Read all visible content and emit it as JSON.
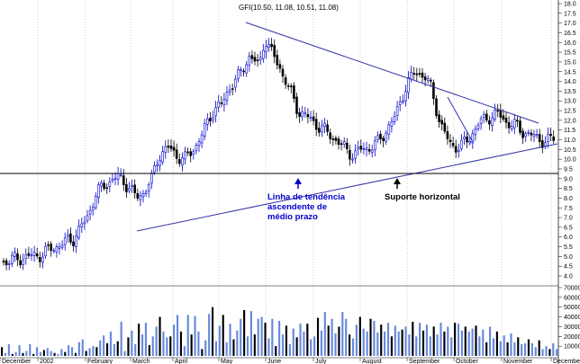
{
  "chart_data": {
    "type": "candlestick",
    "title": "GFI(10.50, 11.08, 10.51, 11.08)",
    "price_axis": {
      "ylim": [
        4.0,
        18.0
      ],
      "ticks": [
        "4.0",
        "4.5",
        "5.0",
        "5.5",
        "6.0",
        "6.5",
        "7.0",
        "7.5",
        "8.0",
        "8.5",
        "9.0",
        "9.5",
        "10.0",
        "10.5",
        "11.0",
        "11.5",
        "12.0",
        "12.5",
        "13.0",
        "13.5",
        "14.0",
        "14.5",
        "15.0",
        "15.5",
        "16.0",
        "16.5",
        "17.0",
        "17.5",
        "18.0"
      ]
    },
    "volume_axis": {
      "ylim": [
        0,
        70000
      ],
      "ticks": [
        "10000",
        "20000",
        "30000",
        "40000",
        "50000",
        "60000",
        "70000"
      ]
    },
    "x_months": [
      "December",
      "2002",
      "February",
      "March",
      "April",
      "May",
      "June",
      "July",
      "August",
      "September",
      "October",
      "November",
      "December"
    ],
    "price_path": [
      [
        0,
        4.7
      ],
      [
        20,
        4.9
      ],
      [
        45,
        5.1
      ],
      [
        60,
        5.5
      ],
      [
        80,
        5.9
      ],
      [
        95,
        6.9
      ],
      [
        105,
        8.2
      ],
      [
        118,
        8.8
      ],
      [
        130,
        9.1
      ],
      [
        142,
        8.6
      ],
      [
        150,
        8.0
      ],
      [
        158,
        8.3
      ],
      [
        168,
        9.0
      ],
      [
        175,
        10.2
      ],
      [
        185,
        10.6
      ],
      [
        195,
        10.2
      ],
      [
        205,
        10.0
      ],
      [
        215,
        10.6
      ],
      [
        225,
        11.4
      ],
      [
        235,
        12.5
      ],
      [
        245,
        12.8
      ],
      [
        255,
        13.8
      ],
      [
        265,
        14.3
      ],
      [
        275,
        15.3
      ],
      [
        287,
        14.8
      ],
      [
        293,
        16.3
      ],
      [
        300,
        15.5
      ],
      [
        310,
        14.7
      ],
      [
        320,
        13.6
      ],
      [
        330,
        12.5
      ],
      [
        345,
        12.0
      ],
      [
        355,
        11.6
      ],
      [
        365,
        11.3
      ],
      [
        378,
        10.7
      ],
      [
        392,
        10.2
      ],
      [
        400,
        10.5
      ],
      [
        408,
        10.6
      ],
      [
        418,
        10.8
      ],
      [
        428,
        11.5
      ],
      [
        438,
        12.2
      ],
      [
        448,
        13.6
      ],
      [
        460,
        14.5
      ],
      [
        470,
        14.3
      ],
      [
        478,
        13.6
      ],
      [
        488,
        11.8
      ],
      [
        498,
        10.8
      ],
      [
        510,
        10.6
      ],
      [
        520,
        11.1
      ],
      [
        530,
        11.8
      ],
      [
        542,
        12.2
      ],
      [
        552,
        12.3
      ],
      [
        562,
        11.9
      ],
      [
        572,
        11.7
      ],
      [
        580,
        11.4
      ],
      [
        590,
        11.2
      ],
      [
        605,
        10.9
      ],
      [
        615,
        11.1
      ]
    ],
    "volume_series": [
      {
        "name": "",
        "values": [
          9000,
          3000,
          12000,
          2000,
          4000,
          11000,
          3000,
          5000,
          12000,
          2000,
          9000,
          4000,
          6000,
          8000,
          5000,
          3000,
          2000,
          7000,
          4000,
          11000,
          9000,
          3000,
          14000,
          17000,
          5000,
          8000,
          10000,
          9000,
          16000,
          21000,
          13000,
          25000,
          12000,
          15000,
          35000,
          5000,
          19000,
          26000,
          12000,
          33000,
          22000,
          34000,
          11000,
          20000,
          30000,
          40000,
          25000,
          19000,
          20000,
          32000,
          42000,
          25000,
          10000,
          42000,
          22000,
          41000,
          25000,
          7000,
          16000,
          43000,
          50000,
          15000,
          31000,
          42000,
          14000,
          33000,
          17000,
          26000,
          38000,
          47000,
          20000,
          46000,
          22000,
          38000,
          40000,
          34000,
          18000,
          38000,
          10000,
          36000,
          22000,
          31000,
          12000,
          28000,
          19000,
          33000,
          25000,
          33000,
          17000,
          20000,
          39000,
          26000,
          45000,
          31000,
          38000,
          23000,
          30000,
          45000,
          38000,
          22000,
          18000,
          32000,
          40000,
          28000,
          25000,
          38000,
          36000,
          24000,
          32000,
          25000,
          34000,
          20000,
          31000,
          25000,
          27000,
          30000,
          22000,
          35000,
          20000,
          34000,
          26000,
          32000,
          20000,
          30000,
          22000,
          34000,
          25000,
          30000,
          19000,
          34000,
          33000,
          26000,
          30000,
          25000,
          28000,
          31000,
          20000,
          27000,
          14000,
          30000,
          18000,
          25000,
          15000,
          21000,
          14000,
          23000,
          14000,
          19000,
          12000,
          13000,
          17000,
          13000,
          9000,
          16000,
          7000,
          10000,
          7000,
          13000,
          7000
        ]
      }
    ],
    "annotations": {
      "uptrend": "Linha de tendência\nascendente de\nmédio prazo",
      "support": "Suporte horizontal"
    },
    "colors": {
      "bull": "#0000cc",
      "bear": "#000000",
      "volume": "#6688dd",
      "volume_dark": "#000000",
      "trend": "#3333aa",
      "grid": "#999999"
    }
  }
}
